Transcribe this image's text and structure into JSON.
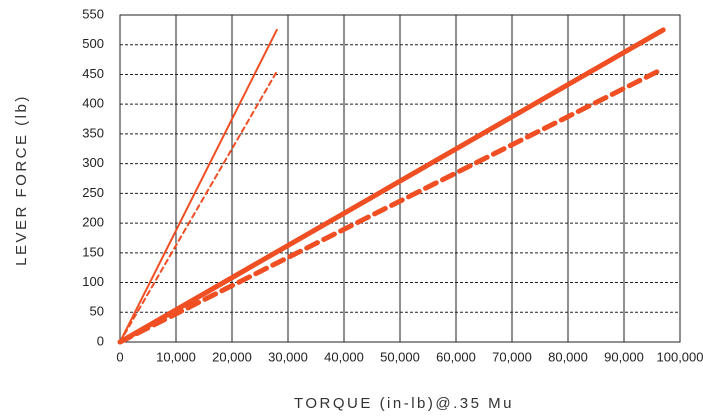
{
  "chart_data": {
    "type": "line",
    "x_label": "TORQUE (in-lb)@.35 Mu",
    "y_label": "LEVER FORCE (lb)",
    "xlim": [
      0,
      100000
    ],
    "xticks": [
      0,
      {
        "value": 10000,
        "label": "10,000"
      },
      {
        "value": 20000,
        "label": "20,000"
      },
      {
        "value": 30000,
        "label": "30,000"
      },
      {
        "value": 40000,
        "label": "40,000"
      },
      {
        "value": 50000,
        "label": "50,000"
      },
      {
        "value": 60000,
        "label": "60,000"
      },
      {
        "value": 70000,
        "label": "70,000"
      },
      {
        "value": 80000,
        "label": "80,000"
      },
      {
        "value": 90000,
        "label": "90,000"
      },
      {
        "value": 100000,
        "label": "100,000"
      }
    ],
    "ylim": [
      0,
      550
    ],
    "yticks": [
      0,
      50,
      100,
      150,
      200,
      250,
      300,
      350,
      400,
      450,
      500,
      550
    ],
    "grid": true,
    "series": [
      {
        "color": "#f04e23",
        "width": 2,
        "dashed": false,
        "x": [
          0,
          28000
        ],
        "values": [
          0,
          525
        ]
      },
      {
        "color": "#f04e23",
        "width": 2,
        "dashed": true,
        "x": [
          0,
          28000
        ],
        "values": [
          0,
          455
        ]
      },
      {
        "color": "#f04e23",
        "width": 5,
        "dashed": false,
        "x": [
          0,
          97000
        ],
        "values": [
          0,
          525
        ]
      },
      {
        "color": "#f04e23",
        "width": 5,
        "dashed": true,
        "x": [
          0,
          96000
        ],
        "values": [
          0,
          455
        ]
      }
    ]
  }
}
